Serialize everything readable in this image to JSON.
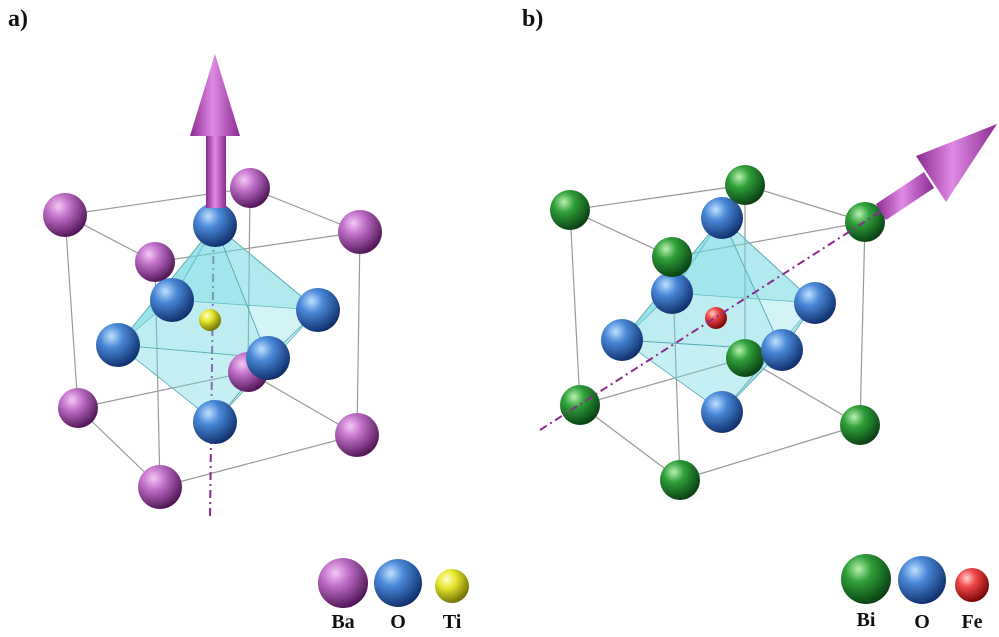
{
  "panels": [
    {
      "label": "a)",
      "legend": [
        "Ba",
        "O",
        "Ti"
      ]
    },
    {
      "label": "b)",
      "legend": [
        "Bi",
        "O",
        "Fe"
      ]
    }
  ]
}
